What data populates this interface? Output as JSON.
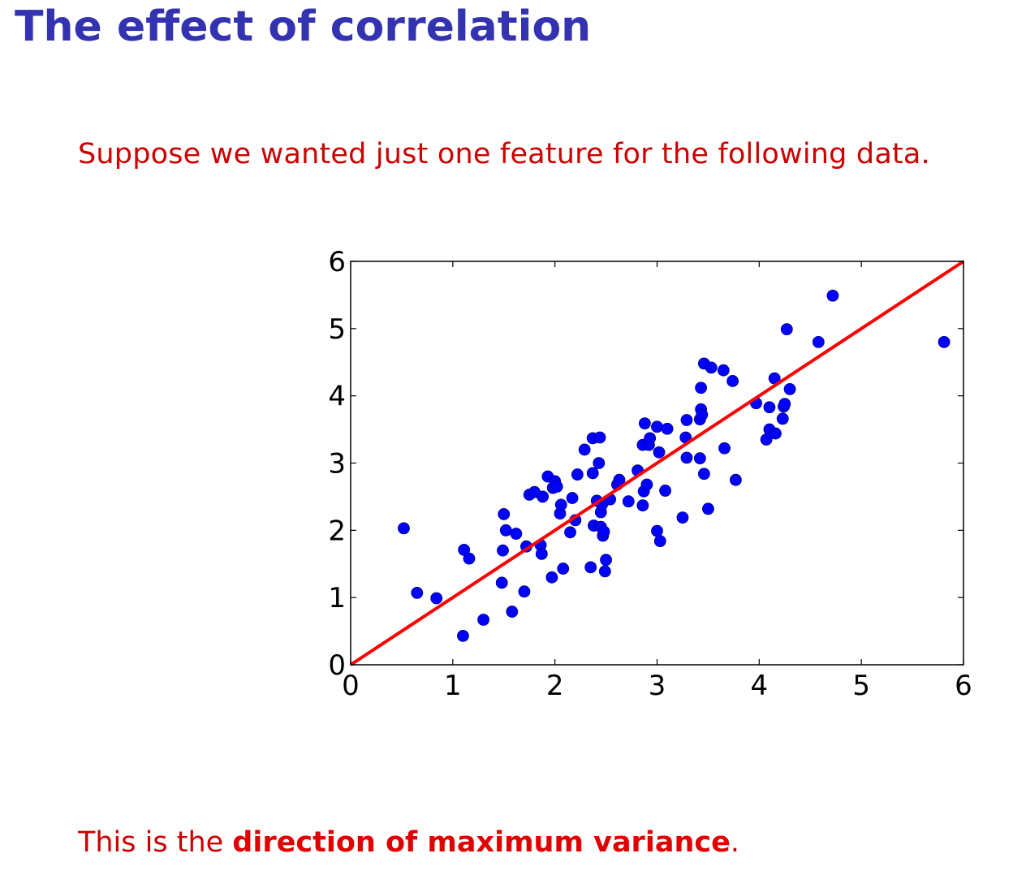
{
  "slide": {
    "title": "The effect of correlation",
    "intro": "Suppose we wanted just one feature for the following data.",
    "conclusion_prefix": "This is the ",
    "conclusion_emphasis": "direction of maximum variance",
    "conclusion_suffix": "."
  },
  "colors": {
    "title": "#3333b2",
    "text": "#cc0000",
    "points": "#0000ff",
    "line": "#ff0000",
    "axis": "#000000"
  },
  "chart_data": {
    "type": "scatter",
    "title": "",
    "xlabel": "",
    "ylabel": "",
    "xlim": [
      0,
      6
    ],
    "ylim": [
      0,
      6
    ],
    "xticks": [
      0,
      1,
      2,
      3,
      4,
      5,
      6
    ],
    "yticks": [
      0,
      1,
      2,
      3,
      4,
      5,
      6
    ],
    "grid": false,
    "legend": "none",
    "line": {
      "x": [
        0,
        6
      ],
      "y": [
        0,
        6
      ]
    },
    "points": [
      [
        0.52,
        2.03
      ],
      [
        0.65,
        1.07
      ],
      [
        0.84,
        0.99
      ],
      [
        1.1,
        0.43
      ],
      [
        1.11,
        1.71
      ],
      [
        1.16,
        1.58
      ],
      [
        1.3,
        0.67
      ],
      [
        1.48,
        1.22
      ],
      [
        1.49,
        1.7
      ],
      [
        1.5,
        2.24
      ],
      [
        1.52,
        2.0
      ],
      [
        1.58,
        0.79
      ],
      [
        1.62,
        1.95
      ],
      [
        1.7,
        1.09
      ],
      [
        1.72,
        1.76
      ],
      [
        1.75,
        2.53
      ],
      [
        1.8,
        2.57
      ],
      [
        1.86,
        1.78
      ],
      [
        1.87,
        1.65
      ],
      [
        1.88,
        2.5
      ],
      [
        1.93,
        2.8
      ],
      [
        1.97,
        1.3
      ],
      [
        1.98,
        2.63
      ],
      [
        2.0,
        2.73
      ],
      [
        2.02,
        2.65
      ],
      [
        2.05,
        2.25
      ],
      [
        2.06,
        2.38
      ],
      [
        2.08,
        1.43
      ],
      [
        2.15,
        1.97
      ],
      [
        2.17,
        2.48
      ],
      [
        2.2,
        2.15
      ],
      [
        2.22,
        2.83
      ],
      [
        2.29,
        3.2
      ],
      [
        2.35,
        1.45
      ],
      [
        2.37,
        2.85
      ],
      [
        2.37,
        3.37
      ],
      [
        2.38,
        2.07
      ],
      [
        2.41,
        2.44
      ],
      [
        2.43,
        3.0
      ],
      [
        2.44,
        3.38
      ],
      [
        2.45,
        2.05
      ],
      [
        2.45,
        2.27
      ],
      [
        2.46,
        2.38
      ],
      [
        2.47,
        1.92
      ],
      [
        2.48,
        1.98
      ],
      [
        2.49,
        1.39
      ],
      [
        2.5,
        1.56
      ],
      [
        2.54,
        2.46
      ],
      [
        2.61,
        2.68
      ],
      [
        2.63,
        2.75
      ],
      [
        2.72,
        2.43
      ],
      [
        2.81,
        2.89
      ],
      [
        2.86,
        2.37
      ],
      [
        2.86,
        3.27
      ],
      [
        2.87,
        2.58
      ],
      [
        2.88,
        3.59
      ],
      [
        2.9,
        2.68
      ],
      [
        2.92,
        3.27
      ],
      [
        2.93,
        3.37
      ],
      [
        3.0,
        1.99
      ],
      [
        3.0,
        3.54
      ],
      [
        3.02,
        3.16
      ],
      [
        3.03,
        1.84
      ],
      [
        3.08,
        2.59
      ],
      [
        3.1,
        3.51
      ],
      [
        3.25,
        2.19
      ],
      [
        3.28,
        3.38
      ],
      [
        3.29,
        3.64
      ],
      [
        3.29,
        3.08
      ],
      [
        3.42,
        3.65
      ],
      [
        3.42,
        3.07
      ],
      [
        3.43,
        3.8
      ],
      [
        3.43,
        4.12
      ],
      [
        3.44,
        3.72
      ],
      [
        3.46,
        2.84
      ],
      [
        3.46,
        4.48
      ],
      [
        3.5,
        2.32
      ],
      [
        3.53,
        4.42
      ],
      [
        3.65,
        4.38
      ],
      [
        3.66,
        3.22
      ],
      [
        3.74,
        4.22
      ],
      [
        3.77,
        2.75
      ],
      [
        3.97,
        3.89
      ],
      [
        4.07,
        3.35
      ],
      [
        4.1,
        3.83
      ],
      [
        4.1,
        3.5
      ],
      [
        4.15,
        4.26
      ],
      [
        4.16,
        3.44
      ],
      [
        4.23,
        3.66
      ],
      [
        4.24,
        3.84
      ],
      [
        4.25,
        3.88
      ],
      [
        4.27,
        4.99
      ],
      [
        4.3,
        4.1
      ],
      [
        4.58,
        4.8
      ],
      [
        4.72,
        5.49
      ],
      [
        5.81,
        4.8
      ]
    ]
  }
}
